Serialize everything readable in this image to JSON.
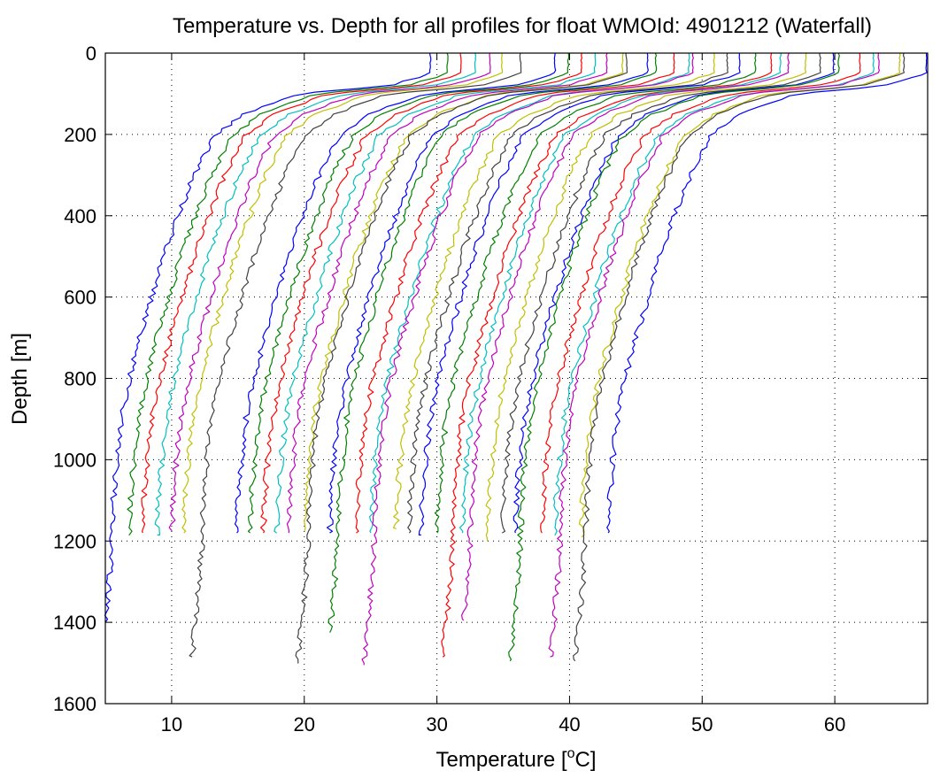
{
  "chart_data": {
    "type": "line",
    "title": "Temperature vs. Depth for all profiles for float WMOId: 4901212 (Waterfall)",
    "xlabel_main": "Temperature [",
    "xlabel_sup": "o",
    "xlabel_end": "C]",
    "ylabel": "Depth [m]",
    "xlim": [
      5,
      67
    ],
    "ylim": [
      0,
      1600
    ],
    "y_reversed": true,
    "grid": true,
    "x_ticks": [
      "10",
      "20",
      "30",
      "40",
      "50",
      "60"
    ],
    "x_tick_values": [
      10,
      20,
      30,
      40,
      50,
      60
    ],
    "y_ticks": [
      "0",
      "200",
      "400",
      "600",
      "800",
      "1000",
      "1200",
      "1400",
      "1600"
    ],
    "y_tick_values": [
      0,
      200,
      400,
      600,
      800,
      1000,
      1200,
      1400,
      1600
    ],
    "colors": [
      "#0000ff",
      "#008000",
      "#ff0000",
      "#00bfbf",
      "#bf00bf",
      "#bfbf00",
      "#404040"
    ],
    "profile_shape": {
      "depths": [
        0,
        50,
        80,
        100,
        150,
        200,
        300,
        400,
        500,
        600,
        700,
        800,
        900,
        1000,
        1100,
        1200,
        1300,
        1400,
        1500
      ],
      "offsets": [
        24,
        24,
        21,
        14,
        10,
        7.8,
        6.2,
        5,
        3.9,
        3,
        2.1,
        1.3,
        0.7,
        0.35,
        0.1,
        0,
        -0.2,
        -0.5,
        -0.8
      ]
    },
    "series": [
      {
        "bottom_temp": 5.5,
        "max_depth": 1400
      },
      {
        "bottom_temp": 6.8,
        "max_depth": 1185
      },
      {
        "bottom_temp": 7.8,
        "max_depth": 1180
      },
      {
        "bottom_temp": 8.9,
        "max_depth": 1185
      },
      {
        "bottom_temp": 10.0,
        "max_depth": 1175
      },
      {
        "bottom_temp": 10.9,
        "max_depth": 1180
      },
      {
        "bottom_temp": 12.3,
        "max_depth": 1485
      },
      {
        "bottom_temp": 14.9,
        "max_depth": 1180
      },
      {
        "bottom_temp": 15.9,
        "max_depth": 1180
      },
      {
        "bottom_temp": 16.9,
        "max_depth": 1180
      },
      {
        "bottom_temp": 17.9,
        "max_depth": 1180
      },
      {
        "bottom_temp": 18.8,
        "max_depth": 1180
      },
      {
        "bottom_temp": 20.0,
        "max_depth": 1175
      },
      {
        "bottom_temp": 20.3,
        "max_depth": 1500
      },
      {
        "bottom_temp": 21.9,
        "max_depth": 1180
      },
      {
        "bottom_temp": 22.5,
        "max_depth": 1425
      },
      {
        "bottom_temp": 23.9,
        "max_depth": 1180
      },
      {
        "bottom_temp": 25.0,
        "max_depth": 1180
      },
      {
        "bottom_temp": 25.3,
        "max_depth": 1505
      },
      {
        "bottom_temp": 26.9,
        "max_depth": 1170
      },
      {
        "bottom_temp": 27.9,
        "max_depth": 1180
      },
      {
        "bottom_temp": 28.8,
        "max_depth": 1185
      },
      {
        "bottom_temp": 30.0,
        "max_depth": 1180
      },
      {
        "bottom_temp": 31.2,
        "max_depth": 1485
      },
      {
        "bottom_temp": 31.9,
        "max_depth": 1180
      },
      {
        "bottom_temp": 32.5,
        "max_depth": 1395
      },
      {
        "bottom_temp": 33.8,
        "max_depth": 1200
      },
      {
        "bottom_temp": 34.9,
        "max_depth": 1180
      },
      {
        "bottom_temp": 35.9,
        "max_depth": 1180
      },
      {
        "bottom_temp": 36.3,
        "max_depth": 1495
      },
      {
        "bottom_temp": 37.9,
        "max_depth": 1180
      },
      {
        "bottom_temp": 38.9,
        "max_depth": 1185
      },
      {
        "bottom_temp": 39.3,
        "max_depth": 1485
      },
      {
        "bottom_temp": 40.9,
        "max_depth": 1190
      },
      {
        "bottom_temp": 41.2,
        "max_depth": 1495
      },
      {
        "bottom_temp": 42.9,
        "max_depth": 1180
      }
    ]
  }
}
